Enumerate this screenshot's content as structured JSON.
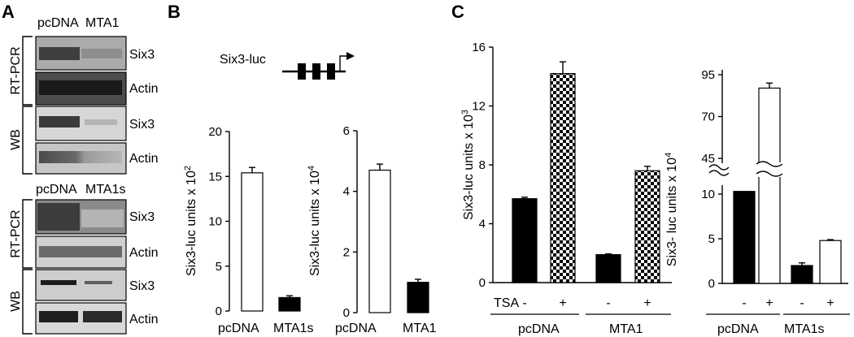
{
  "panels": {
    "a": {
      "letter": "A",
      "top": {
        "header": [
          "pcDNA",
          "MTA1"
        ],
        "rtpcr_label": "RT-PCR",
        "wb_label": "WB",
        "rows": [
          "Six3",
          "Actin",
          "Six3",
          "Actin"
        ]
      },
      "bottom": {
        "header": [
          "pcDNA",
          "MTA1s"
        ],
        "rtpcr_label": "RT-PCR",
        "wb_label": "WB",
        "rows": [
          "Six3",
          "Actin",
          "Six3",
          "Actin"
        ]
      }
    },
    "b": {
      "letter": "B",
      "construct_label": "Six3-luc"
    },
    "c": {
      "letter": "C",
      "tsa_label": "TSA",
      "minus": "-",
      "plus": "+"
    }
  },
  "chart_data": [
    {
      "id": "b1",
      "type": "bar",
      "ylabel": "Six3-luc units x 10",
      "ylabel_exp": "2",
      "ylim": [
        0,
        20
      ],
      "yticks": [
        "0",
        "5",
        "10",
        "15",
        "20"
      ],
      "categories": [
        "pcDNA",
        "MTA1s"
      ],
      "values": [
        15.4,
        1.5
      ],
      "errors": [
        0.6,
        0.2
      ],
      "fills": [
        "white",
        "black"
      ]
    },
    {
      "id": "b2",
      "type": "bar",
      "ylabel": "Six3-luc units x 10",
      "ylabel_exp": "4",
      "ylim": [
        0,
        6
      ],
      "yticks": [
        "0",
        "2",
        "4",
        "6"
      ],
      "categories": [
        "pcDNA",
        "MTA1"
      ],
      "values": [
        4.7,
        1.0
      ],
      "errors": [
        0.2,
        0.1
      ],
      "fills": [
        "white",
        "black"
      ]
    },
    {
      "id": "c1",
      "type": "bar",
      "ylabel": "Six3-luc units x 10",
      "ylabel_exp": "3",
      "ylim": [
        0,
        16
      ],
      "yticks": [
        "0",
        "4",
        "8",
        "12",
        "16"
      ],
      "groups": [
        "pcDNA",
        "MTA1"
      ],
      "series": [
        {
          "tsa": "-",
          "values": [
            5.7,
            1.9
          ],
          "errors": [
            0.1,
            0.05
          ],
          "fill": "black"
        },
        {
          "tsa": "+",
          "values": [
            14.2,
            7.6
          ],
          "errors": [
            0.8,
            0.3
          ],
          "fill": "checker"
        }
      ]
    },
    {
      "id": "c2",
      "type": "bar",
      "ylabel": "Six3- luc units x 10",
      "ylabel_exp": "4",
      "broken_axis": true,
      "yticks": [
        "0",
        "5",
        "10",
        "45",
        "70",
        "95"
      ],
      "groups": [
        "pcDNA",
        "MTA1s"
      ],
      "series": [
        {
          "tsa": "-",
          "values": [
            10.3,
            2.0
          ],
          "errors": [
            1.3,
            0.3
          ],
          "fill": "black"
        },
        {
          "tsa": "+",
          "values": [
            87,
            4.8
          ],
          "errors": [
            3,
            0.1
          ],
          "fill": "white"
        }
      ]
    }
  ]
}
